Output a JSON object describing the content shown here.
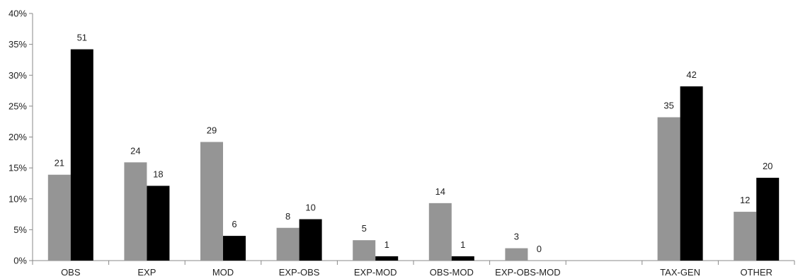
{
  "chart_data": {
    "type": "bar",
    "title": "",
    "xlabel": "",
    "ylabel": "",
    "ylim": [
      0,
      40
    ],
    "y_ticks": [
      "0%",
      "5%",
      "10%",
      "15%",
      "20%",
      "25%",
      "30%",
      "35%",
      "40%"
    ],
    "y_tick_values": [
      0,
      5,
      10,
      15,
      20,
      25,
      30,
      35,
      40
    ],
    "grid": false,
    "legend": "none",
    "categories": [
      "OBS",
      "EXP",
      "MOD",
      "EXP-OBS",
      "EXP-MOD",
      "OBS-MOD",
      "EXP-OBS-MOD",
      "",
      "TAX-GEN",
      "OTHER"
    ],
    "series": [
      {
        "color": "#959595",
        "values": [
          13.9,
          15.9,
          19.2,
          5.3,
          3.3,
          9.3,
          2.0,
          null,
          23.2,
          7.9
        ],
        "labels": [
          "21",
          "24",
          "29",
          "8",
          "5",
          "14",
          "3",
          "",
          "35",
          "12"
        ]
      },
      {
        "color": "#000000",
        "values": [
          34.2,
          12.1,
          4.0,
          6.7,
          0.7,
          0.7,
          0.0,
          null,
          28.2,
          13.4
        ],
        "labels": [
          "51",
          "18",
          "6",
          "10",
          "1",
          "1",
          "0",
          "",
          "42",
          "20"
        ]
      }
    ]
  }
}
